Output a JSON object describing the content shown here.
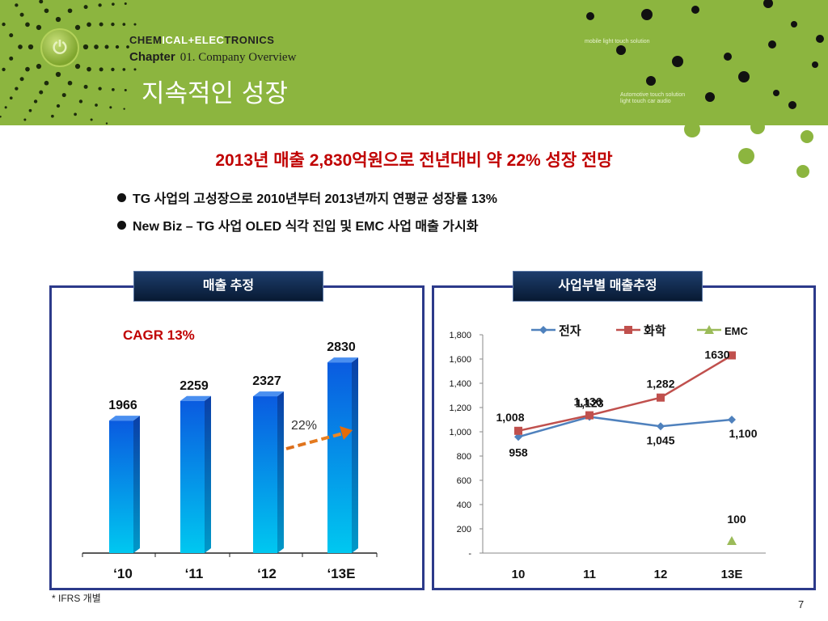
{
  "header": {
    "company_part1": "CHEM",
    "company_part2": "ICAL+ELEC",
    "company_part3": "TRONICS",
    "chapter_label": "Chapter",
    "chapter_sub": "01.  Company Overview",
    "title": "지속적인 성장",
    "right_text_1": "mobile light touch solution",
    "right_text_2": "Automotive touch solution",
    "right_text_3": "light touch car audio"
  },
  "headline": "2013년 매출 2,830억원으로 전년대비 약 22% 성장 전망",
  "bullets": [
    "TG 사업의 고성장으로 2010년부터 2013년까지 연평균 성장률 13%",
    "New Biz – TG 사업 OLED 식각 진입 및 EMC 사업 매출 가시화"
  ],
  "left_panel_label": "매출 추정",
  "right_panel_label": "사업부별 매출추정",
  "footnote": "* IFRS 개별",
  "page_number": "7",
  "colors": {
    "header_green": "#8cb53f",
    "headline_red": "#c00000",
    "panel_border": "#2c3a8a",
    "bar_blue": "#1a6fe8",
    "series_blue": "#4f81bd",
    "series_red": "#c0504d",
    "series_green": "#9bbb59"
  },
  "chart_data": [
    {
      "type": "bar",
      "categories": [
        "‘10",
        "‘11",
        "‘12",
        "‘13E"
      ],
      "values": [
        1966,
        2259,
        2327,
        2830
      ],
      "data_labels": [
        "1966",
        "2259",
        "2327",
        "2830"
      ],
      "ylim": [
        0,
        3000
      ],
      "grid": false,
      "annotations": [
        {
          "text": "CAGR 13%",
          "color": "#c00000"
        },
        {
          "text": "22%",
          "from": "‘12",
          "to": "‘13E",
          "arrow_color": "#e46c0a"
        }
      ]
    },
    {
      "type": "line",
      "categories": [
        "10",
        "11",
        "12",
        "13E"
      ],
      "ylim": [
        0,
        1800
      ],
      "yticks": [
        0,
        200,
        400,
        600,
        800,
        1000,
        1200,
        1400,
        1600,
        1800
      ],
      "ytick_labels": [
        "-",
        "200",
        "400",
        "600",
        "800",
        "1,000",
        "1,200",
        "1,400",
        "1,600",
        "1,800"
      ],
      "legend": "top",
      "grid": false,
      "series": [
        {
          "name": "전자",
          "color": "#4f81bd",
          "marker": "diamond",
          "values": [
            958,
            1123,
            1045,
            1100
          ],
          "labels": [
            "958",
            "1,123",
            "1,045",
            "1,100"
          ]
        },
        {
          "name": "화학",
          "color": "#c0504d",
          "marker": "square",
          "values": [
            1008,
            1136,
            1282,
            1630
          ],
          "labels": [
            "1,008",
            "1,136",
            "1,282",
            "1630"
          ]
        },
        {
          "name": "EMC",
          "color": "#9bbb59",
          "marker": "triangle",
          "values": [
            null,
            null,
            null,
            100
          ],
          "labels": [
            null,
            null,
            null,
            "100"
          ]
        }
      ]
    }
  ]
}
